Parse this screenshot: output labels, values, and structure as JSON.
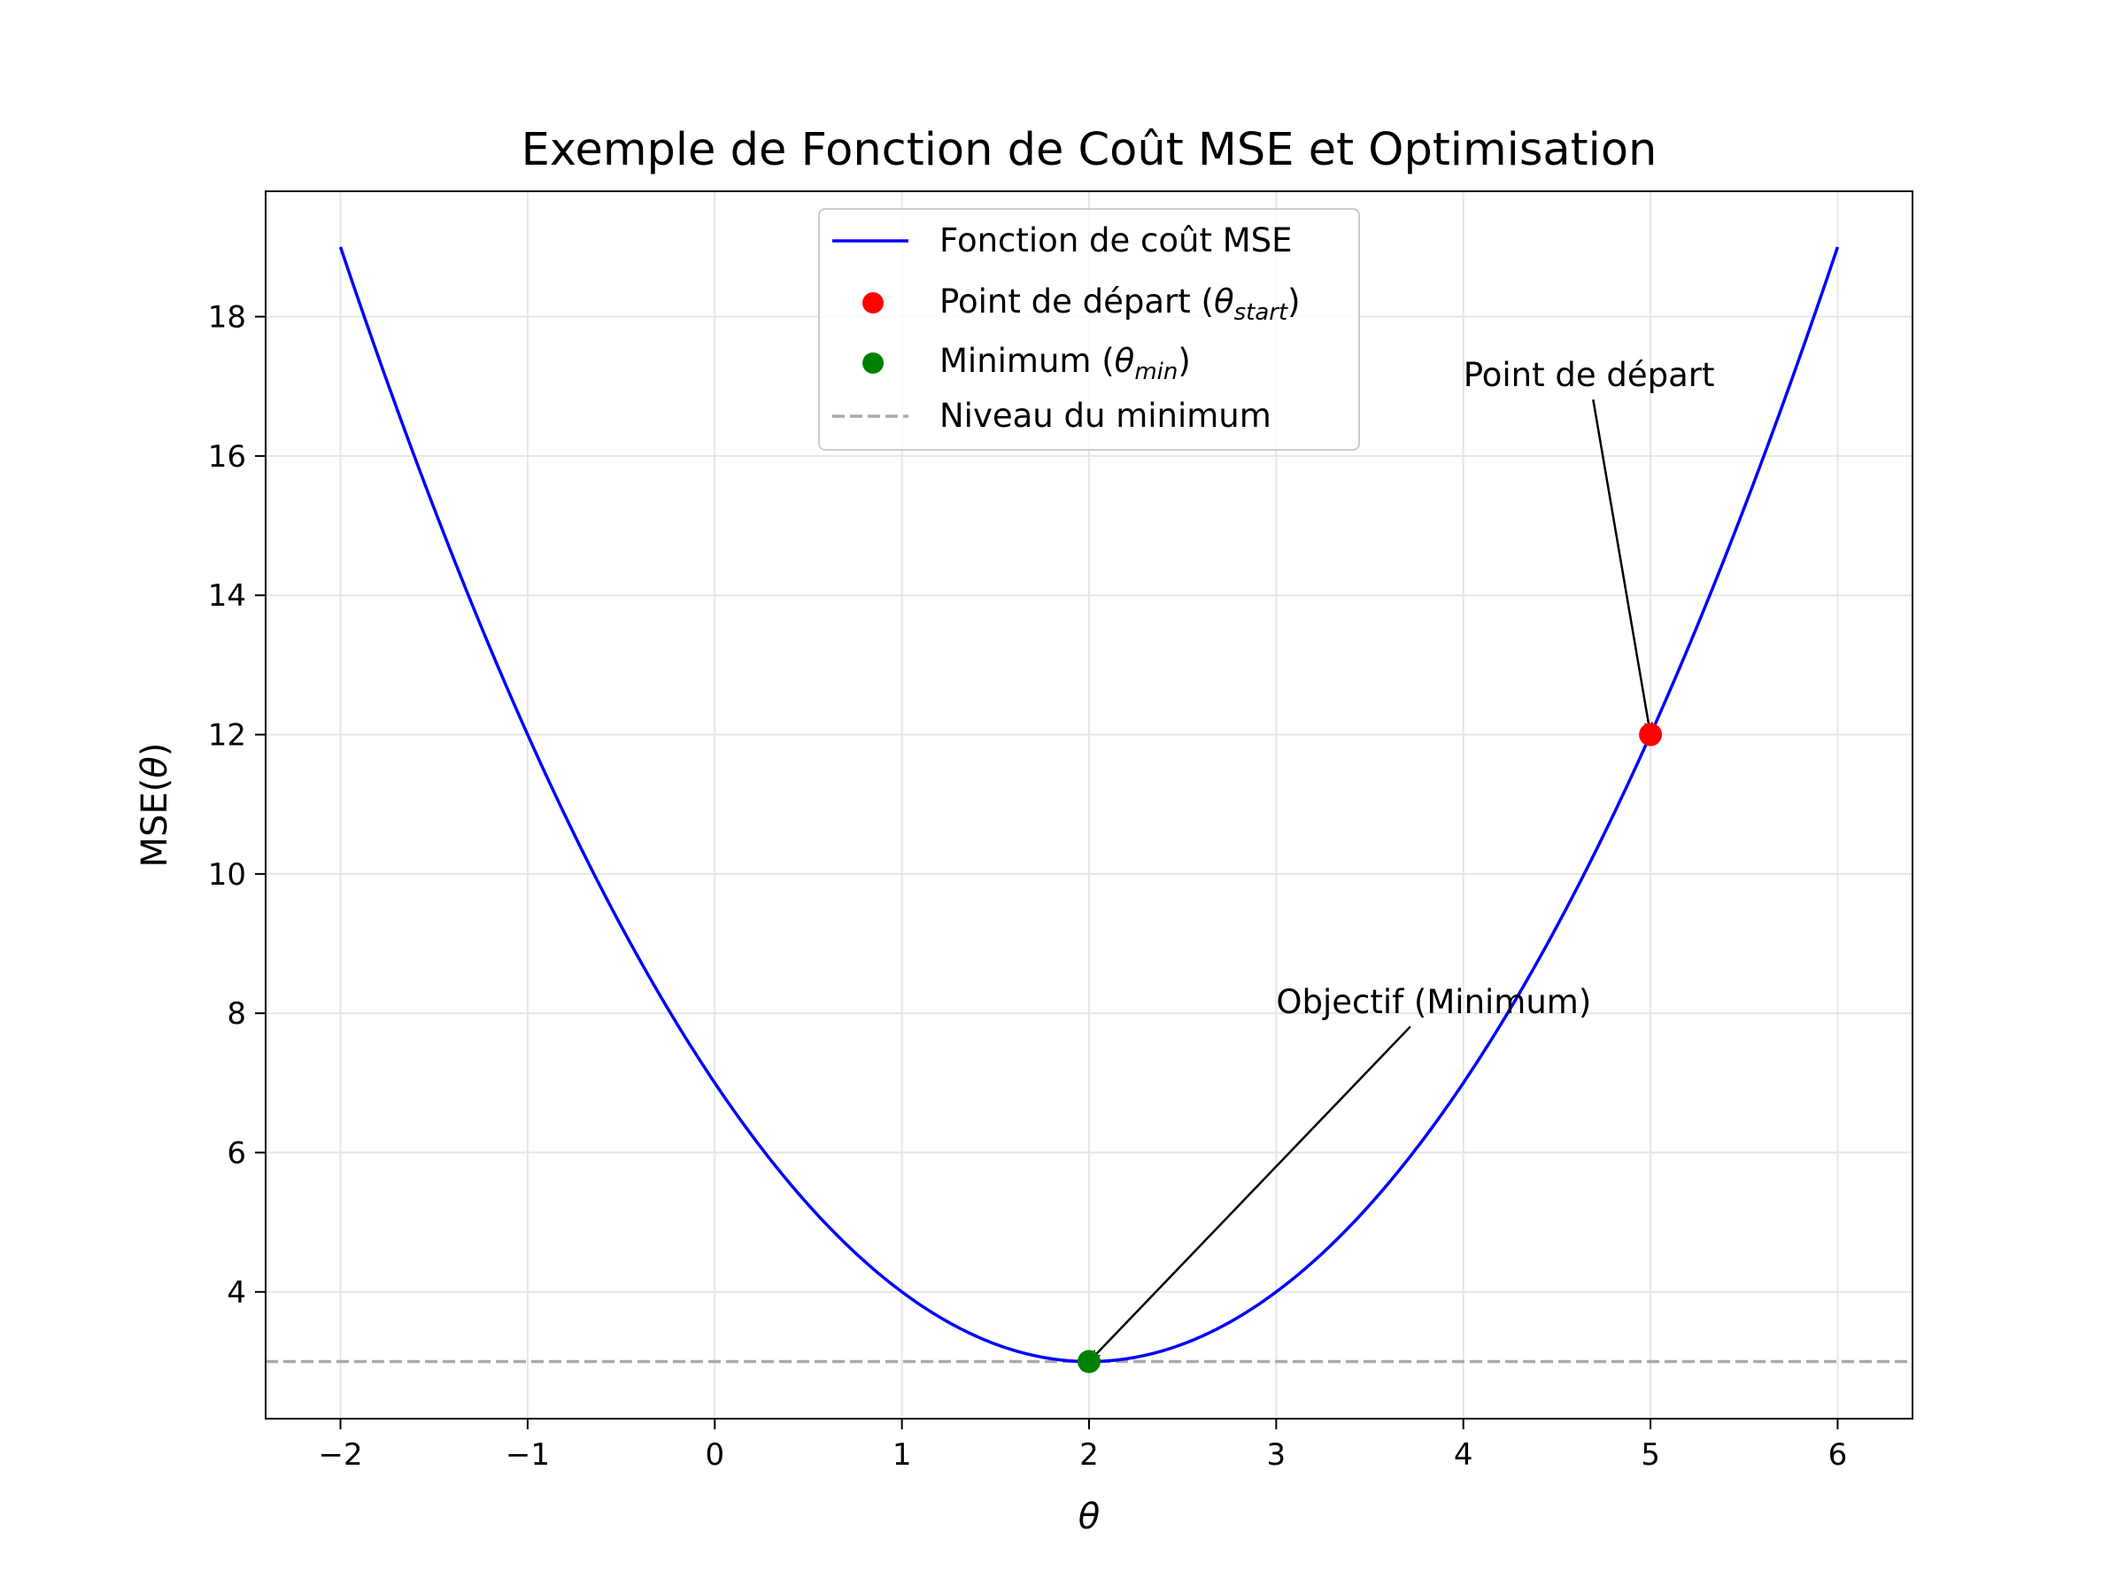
{
  "chart_data": {
    "type": "line",
    "title": "Exemple de Fonction de Coût MSE et Optimisation",
    "xlabel": "θ",
    "ylabel_main": "MSE(",
    "ylabel_theta": "θ",
    "ylabel_close": ")",
    "xlim": [
      -2.4,
      6.4
    ],
    "ylim": [
      2.18,
      19.8
    ],
    "x_ticks": [
      -2,
      -1,
      0,
      1,
      2,
      3,
      4,
      5,
      6
    ],
    "x_tick_labels": [
      "−2",
      "−1",
      "0",
      "1",
      "2",
      "3",
      "4",
      "5",
      "6"
    ],
    "y_ticks": [
      4,
      6,
      8,
      10,
      12,
      14,
      16,
      18
    ],
    "y_tick_labels": [
      "4",
      "6",
      "8",
      "10",
      "12",
      "14",
      "16",
      "18"
    ],
    "grid": true,
    "legend_position": "top-center",
    "series": [
      {
        "name": "Fonction de coût MSE",
        "kind": "line",
        "color": "#0000ff",
        "formula": "(θ − 2)^2 + 3",
        "x_range": [
          -2,
          6
        ]
      },
      {
        "name": "Point de départ (θstart)",
        "kind": "point",
        "color": "#ff0000",
        "x": 5,
        "y": 12
      },
      {
        "name": "Minimum (θmin)",
        "kind": "point",
        "color": "#008000",
        "x": 2,
        "y": 3
      },
      {
        "name": "Niveau du minimum",
        "kind": "hline",
        "color": "#aaaaaa",
        "style": "dashed",
        "y": 3
      }
    ],
    "legend": {
      "line": "Fonction de coût MSE",
      "start_prefix": "Point de départ (",
      "start_theta": "θ",
      "start_sub": "start",
      "start_suffix": ")",
      "min_prefix": "Minimum (",
      "min_theta": "θ",
      "min_sub": "min",
      "min_suffix": ")",
      "hline": "Niveau du minimum"
    },
    "annotations": [
      {
        "text": "Point de départ",
        "text_x": 4,
        "text_y": 17,
        "target_x": 5,
        "target_y": 12
      },
      {
        "text": "Objectif (Minimum)",
        "text_x": 3,
        "text_y": 8,
        "target_x": 2,
        "target_y": 3
      }
    ]
  }
}
